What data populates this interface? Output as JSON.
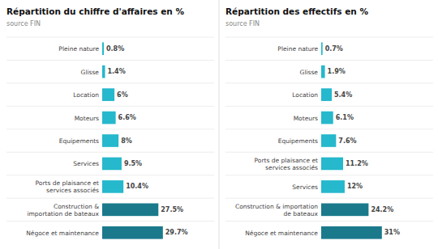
{
  "chart_data": [
    {
      "type": "bar",
      "orientation": "horizontal",
      "title": "Répartition du chiffre d'affaires en %",
      "subtitle": "source FIN",
      "categories": [
        "Pleine nature",
        "Glisse",
        "Location",
        "Moteurs",
        "Equipements",
        "Services",
        "Ports de plaisance et\nservices associés",
        "Construction &\nimportation de bateaux",
        "Négoce et maintenance"
      ],
      "values": [
        0.8,
        1.4,
        6.0,
        6.6,
        8.0,
        9.5,
        10.4,
        27.5,
        29.7
      ],
      "value_labels": [
        "0.8%",
        "1.4%",
        "6%",
        "6.6%",
        "8%",
        "9.5%",
        "10.4%",
        "27.5%",
        "29.7%"
      ],
      "colors": [
        "#26b8cc",
        "#26b8cc",
        "#26b8cc",
        "#26b8cc",
        "#26b8cc",
        "#26b8cc",
        "#26b8cc",
        "#1a7a8c",
        "#1a7a8c"
      ],
      "xlim": [
        0,
        54.0
      ],
      "data_labels": true,
      "tick_labels": "y",
      "grid": false
    },
    {
      "type": "bar",
      "orientation": "horizontal",
      "title": "Répartition des effectifs en %",
      "subtitle": "source FIN",
      "categories": [
        "Pleine nature",
        "Glisse",
        "Location",
        "Moteurs",
        "Equipements",
        "Ports de plaisance et\nservices associés",
        "Services",
        "Construction & importation\nde bateaux",
        "Négoce et maintenance"
      ],
      "values": [
        0.7,
        1.9,
        5.4,
        6.1,
        7.6,
        11.2,
        12.0,
        24.2,
        31.0
      ],
      "value_labels": [
        "0.7%",
        "1.9%",
        "5.4%",
        "6.1%",
        "7.6%",
        "11.2%",
        "12%",
        "24.2%",
        "31%"
      ],
      "colors": [
        "#26b8cc",
        "#26b8cc",
        "#26b8cc",
        "#26b8cc",
        "#26b8cc",
        "#26b8cc",
        "#26b8cc",
        "#1a7a8c",
        "#1a7a8c"
      ],
      "xlim": [
        0,
        56.36363636363636
      ],
      "data_labels": true,
      "tick_labels": "y",
      "grid": false
    }
  ]
}
